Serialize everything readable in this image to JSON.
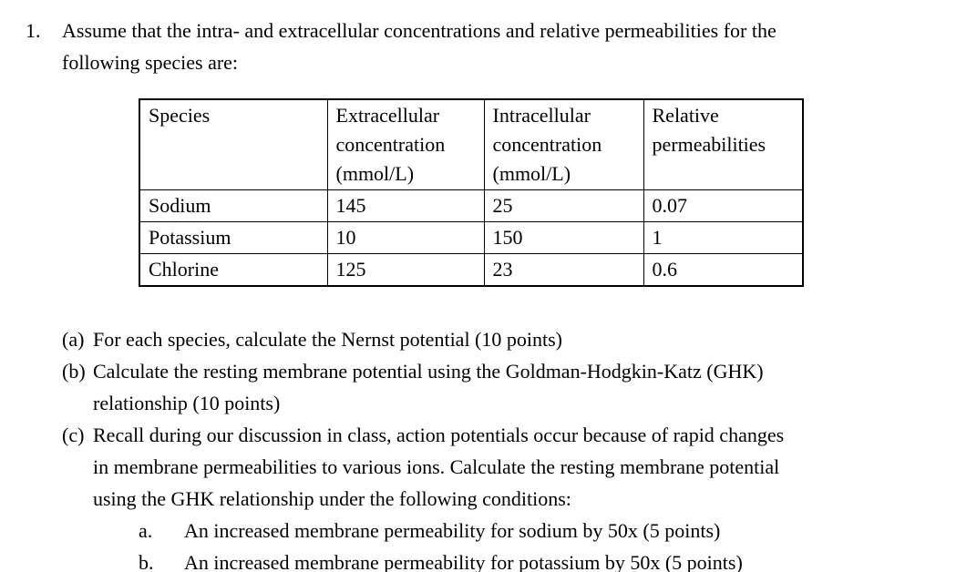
{
  "problem": {
    "number": "1.",
    "intro_line1": "Assume that the intra- and extracellular concentrations and relative permeabilities for the",
    "intro_line2": "following species are:"
  },
  "table": {
    "headers": [
      "Species",
      "Extracellular concentration (mmol/L)",
      "Intracellular concentration (mmol/L)",
      "Relative permeabilities"
    ],
    "rows": [
      [
        "Sodium",
        "145",
        "25",
        "0.07"
      ],
      [
        "Potassium",
        "10",
        "150",
        "1"
      ],
      [
        "Chlorine",
        "125",
        "23",
        "0.6"
      ]
    ]
  },
  "parts": {
    "a": {
      "label": "(a)",
      "lines": [
        "For each species, calculate the Nernst potential (10 points)"
      ]
    },
    "b": {
      "label": "(b)",
      "lines": [
        "Calculate the resting membrane potential using the Goldman-Hodgkin-Katz (GHK)",
        "relationship (10 points)"
      ]
    },
    "c": {
      "label": "(c)",
      "lines": [
        "Recall during our discussion in class, action potentials occur because of rapid changes",
        "in membrane permeabilities to various ions. Calculate the resting membrane potential",
        "using the GHK relationship under the following conditions:"
      ],
      "subparts": [
        {
          "label": "a.",
          "text": "An increased membrane permeability for sodium by 50x (5 points)"
        },
        {
          "label": "b.",
          "text": "An increased membrane permeability for potassium by 50x (5 points)"
        }
      ]
    }
  }
}
